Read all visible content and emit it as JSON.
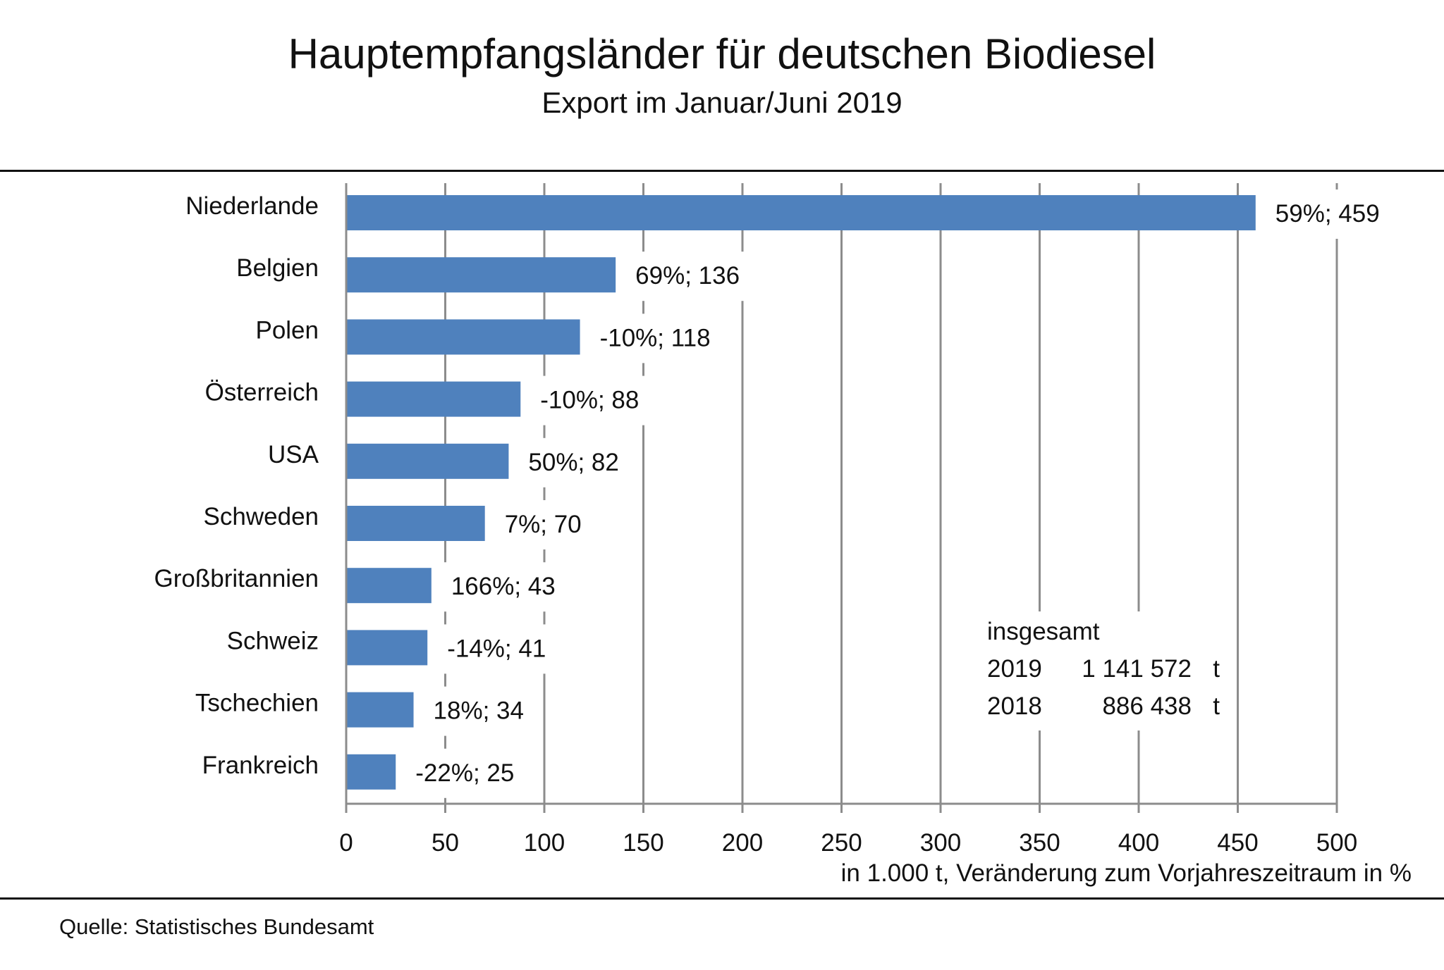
{
  "chart_data": {
    "type": "bar",
    "orientation": "horizontal",
    "title": "Hauptempfangsländer  für deutschen  Biodiesel",
    "subtitle": "Export im Januar/Juni  2019",
    "xlabel": "in 1.000  t, Veränderung  zum Vorjahreszeitraum  in %",
    "ylabel": "",
    "xlim": [
      0,
      500
    ],
    "xticks": [
      "0",
      "50",
      "100",
      "150",
      "200",
      "250",
      "300",
      "350",
      "400",
      "450",
      "500"
    ],
    "xtick_values": [
      0,
      50,
      100,
      150,
      200,
      250,
      300,
      350,
      400,
      450,
      500
    ],
    "grid": "vertical",
    "legend": "none",
    "categories": [
      "Niederlande",
      "Belgien",
      "Polen",
      "Österreich",
      "USA",
      "Schweden",
      "Großbritannien",
      "Schweiz",
      "Tschechien",
      "Frankreich"
    ],
    "values": [
      459,
      136,
      118,
      88,
      82,
      70,
      43,
      41,
      34,
      25
    ],
    "change_pct": [
      59,
      69,
      -10,
      -10,
      50,
      7,
      166,
      -14,
      18,
      -22
    ],
    "data_labels": [
      "59%; 459",
      "69%; 136",
      "-10%; 118",
      "-10%; 88",
      "50%; 82",
      "7%; 70",
      "166%; 43",
      "-14%; 41",
      "18%; 34",
      "-22%; 25"
    ],
    "bar_color": "#4f81bd",
    "grid_color": "#8c8c8c"
  },
  "totals": {
    "heading": "insgesamt",
    "rows": [
      {
        "year": "2019",
        "value": "1 141 572",
        "unit": "t"
      },
      {
        "year": "2018",
        "value": "886 438",
        "unit": "t"
      }
    ]
  },
  "source": "Quelle:  Statistisches Bundesamt"
}
